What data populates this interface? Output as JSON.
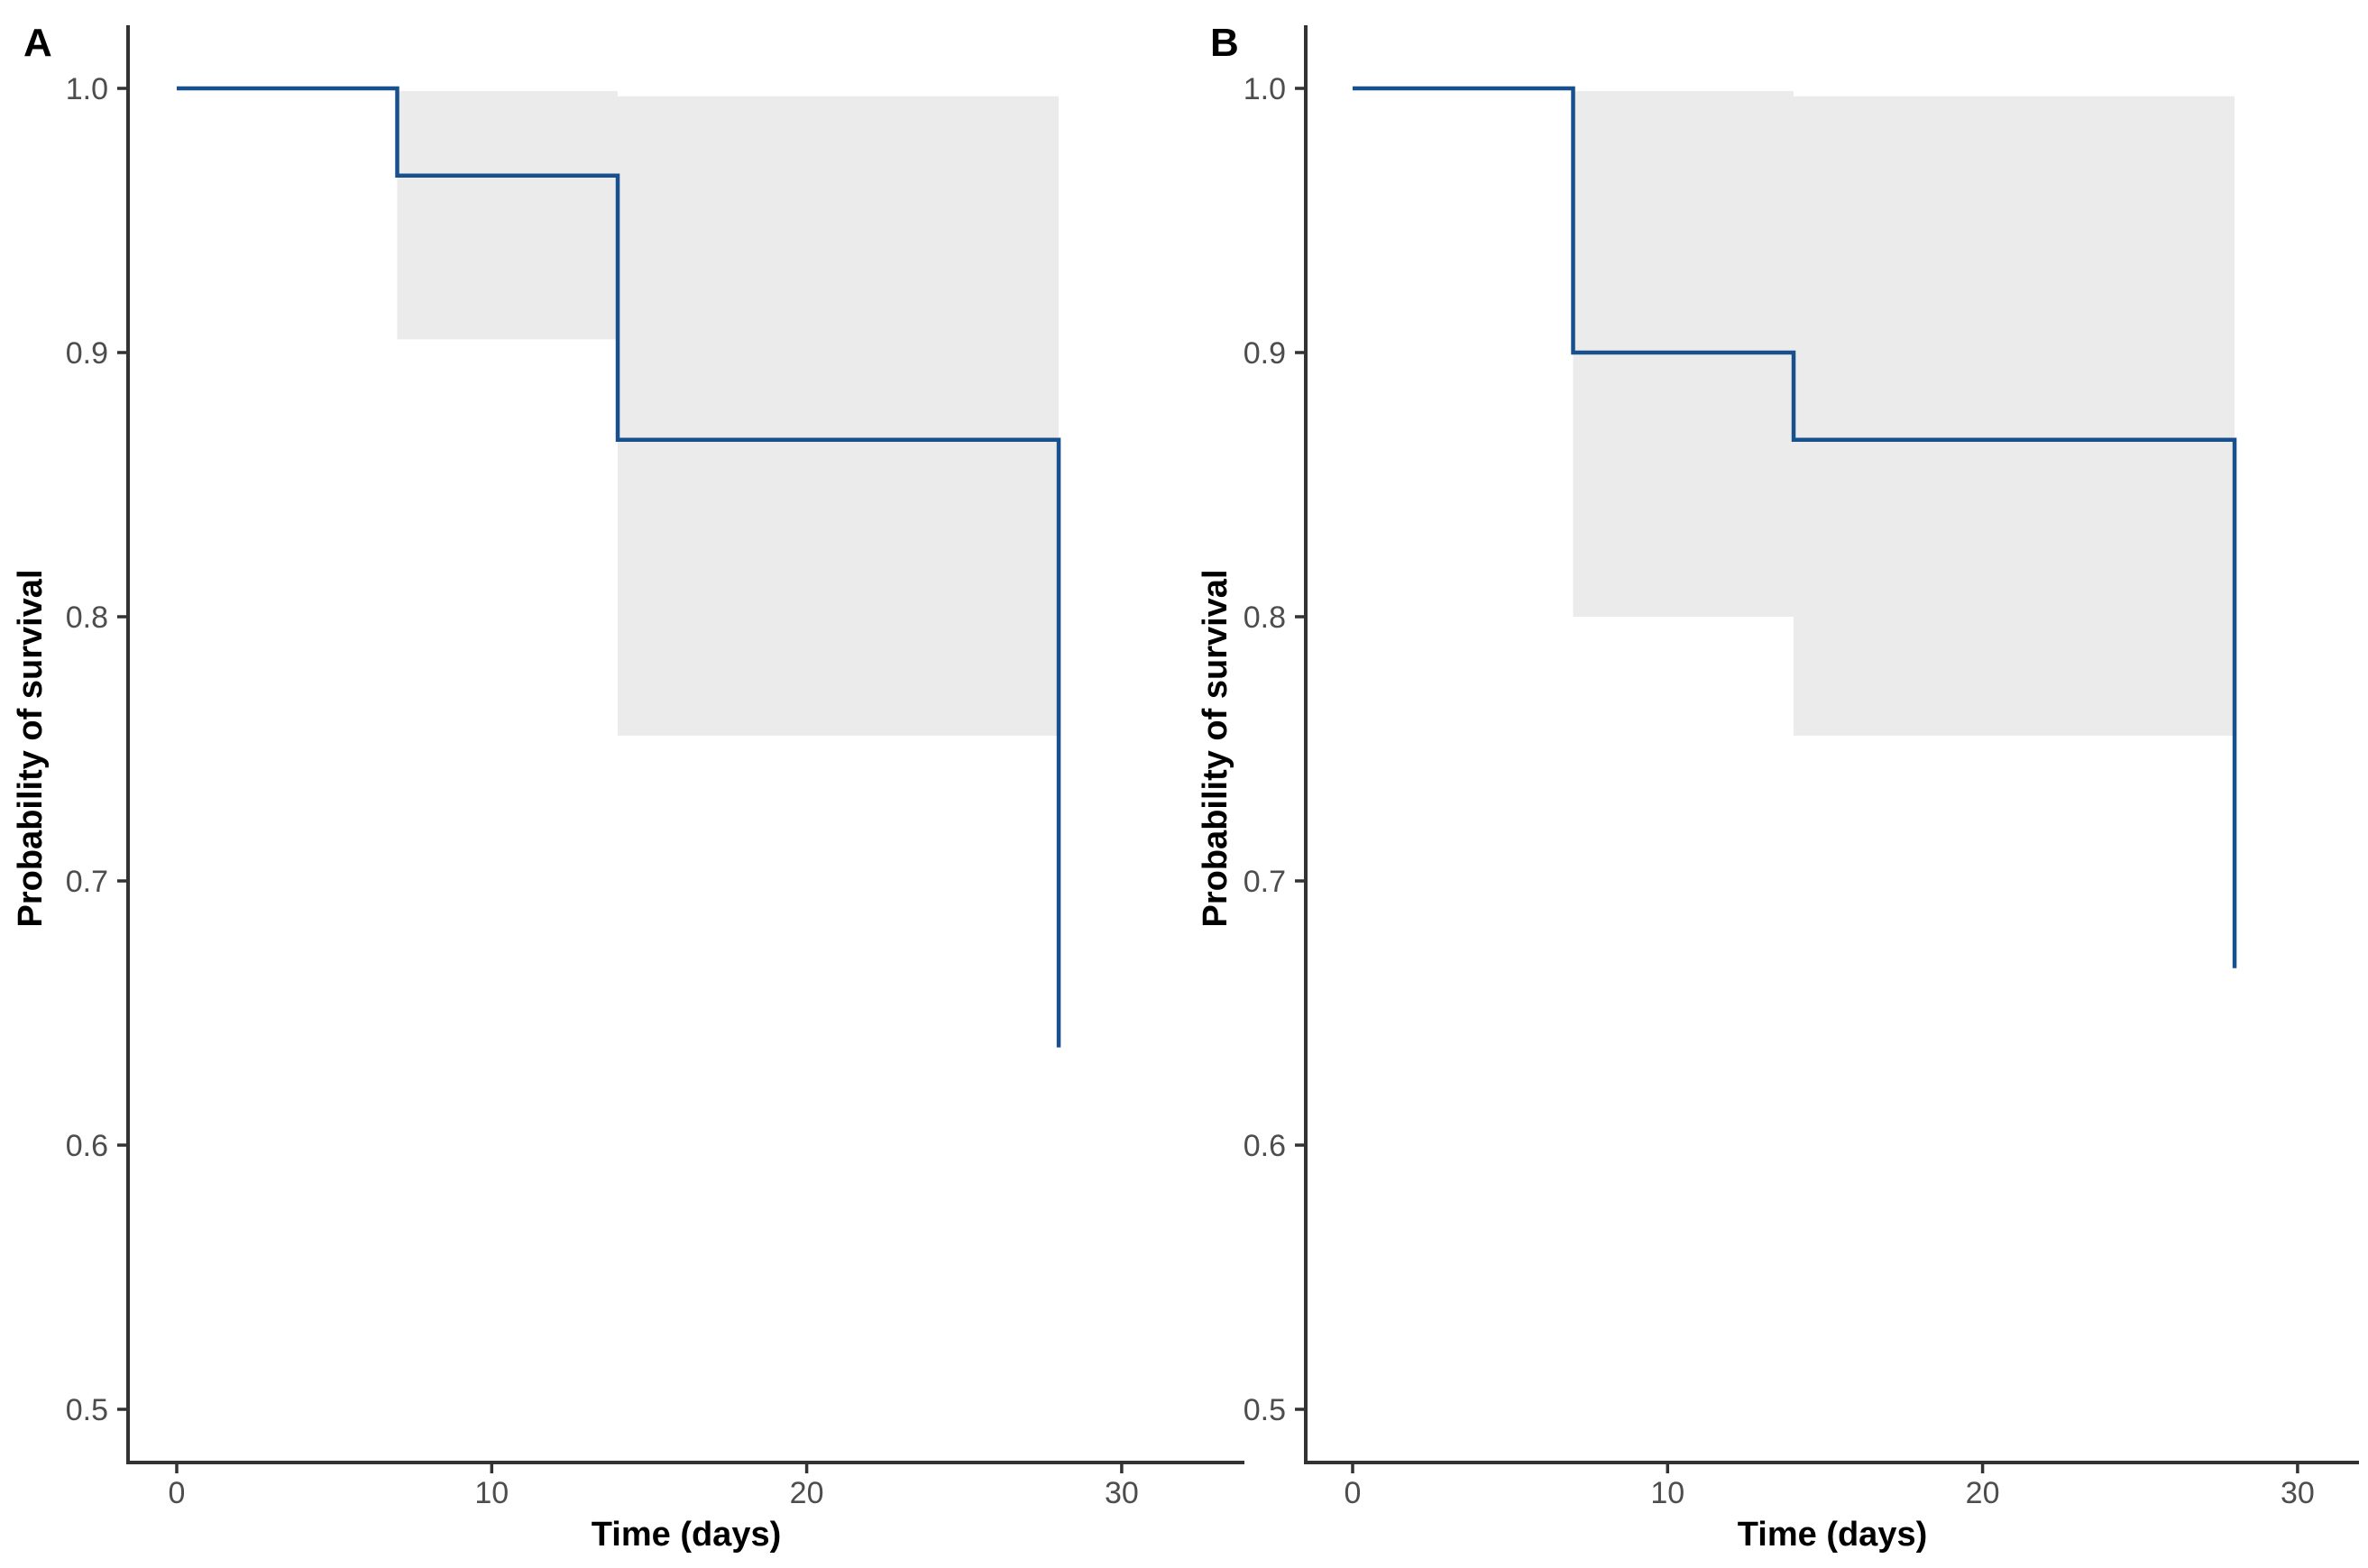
{
  "figure": {
    "type": "kaplan-meier-survival-curves",
    "background": "#ffffff",
    "colors": {
      "curve": "#17508c",
      "ci_band": "#ebebeb",
      "axis_line": "#333333",
      "tick_label": "#4d4d4d",
      "axis_title": "#000000",
      "panel_letter": "#000000"
    }
  },
  "chart_data": [
    {
      "type": "line",
      "subtype": "kaplan-meier-step",
      "panel": "A",
      "title": "A",
      "xlabel": "Time (days)",
      "ylabel": "Probability of survival",
      "xlim": [
        0,
        30
      ],
      "ylim_shown": [
        0.5,
        1.0
      ],
      "grid": false,
      "legend": "none",
      "x_ticks": [
        "0",
        "10",
        "20",
        "30"
      ],
      "y_ticks": [
        "1.0",
        "0.9",
        "0.8",
        "0.7",
        "0.6",
        "0.5"
      ],
      "series": [
        {
          "name": "survival",
          "interpolation": "step-hv",
          "step_points": [
            {
              "x": 0,
              "y": 1.0
            },
            {
              "x": 7,
              "y": 0.967
            },
            {
              "x": 14,
              "y": 0.867
            },
            {
              "x": 28,
              "y": 0.637
            }
          ]
        }
      ],
      "ci_bands": [
        {
          "x0": 7,
          "x1": 14,
          "upper": 0.999,
          "lower": 0.905
        },
        {
          "x0": 14,
          "x1": 28,
          "upper": 0.997,
          "lower": 0.755
        }
      ]
    },
    {
      "type": "line",
      "subtype": "kaplan-meier-step",
      "panel": "B",
      "title": "B",
      "xlabel": "Time (days)",
      "ylabel": "Probability of survival",
      "xlim": [
        0,
        30
      ],
      "ylim_shown": [
        0.5,
        1.0
      ],
      "grid": false,
      "legend": "none",
      "x_ticks": [
        "0",
        "10",
        "20",
        "30"
      ],
      "y_ticks": [
        "1.0",
        "0.9",
        "0.8",
        "0.7",
        "0.6",
        "0.5"
      ],
      "series": [
        {
          "name": "survival",
          "interpolation": "step-hv",
          "step_points": [
            {
              "x": 0,
              "y": 1.0
            },
            {
              "x": 7,
              "y": 0.9
            },
            {
              "x": 14,
              "y": 0.867
            },
            {
              "x": 28,
              "y": 0.667
            }
          ]
        }
      ],
      "ci_bands": [
        {
          "x0": 7,
          "x1": 14,
          "upper": 0.999,
          "lower": 0.8
        },
        {
          "x0": 14,
          "x1": 28,
          "upper": 0.997,
          "lower": 0.755
        }
      ]
    }
  ]
}
